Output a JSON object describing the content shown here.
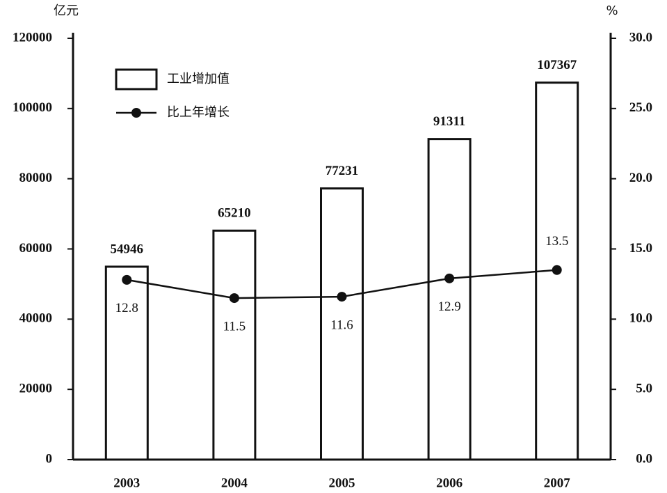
{
  "chart_data": {
    "type": "bar",
    "y_label": "亿元",
    "y2_label": "%",
    "categories": [
      "2003",
      "2004",
      "2005",
      "2006",
      "2007"
    ],
    "series": [
      {
        "name": "工业增加值",
        "type": "bar",
        "color": "#ffffff",
        "values": [
          54946,
          65210,
          77231,
          91311,
          107367
        ]
      },
      {
        "name": "比上年增长",
        "type": "line",
        "axis": "y2",
        "color": "#111111",
        "values": [
          12.8,
          11.5,
          11.6,
          12.9,
          13.5
        ]
      }
    ],
    "ylim": [
      0,
      120000
    ],
    "yticks": [
      0,
      20000,
      40000,
      60000,
      80000,
      100000,
      120000
    ],
    "y2lim": [
      0,
      30
    ],
    "y2ticks": [
      {
        "value": 0,
        "label": "0.0"
      },
      {
        "value": 5,
        "label": "5.0"
      },
      {
        "value": 10,
        "label": "10.0"
      },
      {
        "value": 15,
        "label": "15.0"
      },
      {
        "value": 20,
        "label": "20.0"
      },
      {
        "value": 25,
        "label": "25.0"
      },
      {
        "value": 30,
        "label": "30.0"
      }
    ],
    "grid": false,
    "legend": "upper left"
  }
}
